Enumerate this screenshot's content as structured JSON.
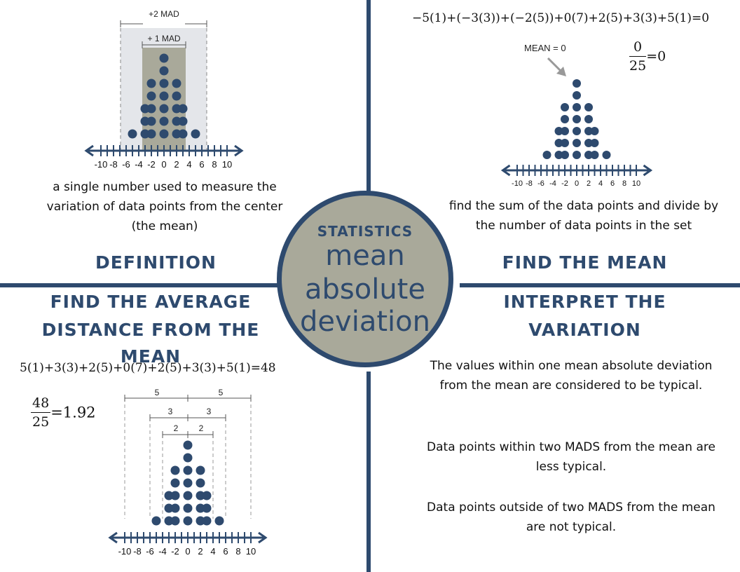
{
  "colors": {
    "navy": "#2e4a6e",
    "gray": "#a9a99a",
    "lightgray": "#e4e6ea",
    "dot": "#2e4a6e"
  },
  "center": {
    "small": "STATISTICS",
    "line1": "mean",
    "line2": "absolute",
    "line3": "deviation"
  },
  "definition": {
    "heading": "DEFINITION",
    "text": "a single number used to measure the variation of data points from the center (the mean)",
    "mad1_label": "+ 1 MAD",
    "mad2_label": "+2 MAD"
  },
  "find_mean": {
    "heading": "FIND THE MEAN",
    "equation": "−5(1)+(−3(3))+(−2(5))+0(7)+2(5)+3(3)+5(1)=0",
    "frac_num": "0",
    "frac_den": "25",
    "frac_result": "=0",
    "mean_label": "MEAN = 0",
    "text": "find the sum of the data points and divide by the number of data points in the set"
  },
  "average_distance": {
    "heading_line1": "FIND THE AVERAGE",
    "heading_line2": "DISTANCE FROM THE MEAN",
    "equation": "5(1)+3(3)+2(5)+0(7)+2(5)+3(3)+5(1)=48",
    "frac_num": "48",
    "frac_den": "25",
    "frac_result": "=1.92",
    "bracket_labels": [
      "5",
      "5",
      "3",
      "3",
      "2",
      "2"
    ]
  },
  "interpret": {
    "heading_line1": "INTERPRET THE",
    "heading_line2": "VARIATION",
    "para1": "The values within one mean absolute deviation from the mean are considered to be typical.",
    "para2": "Data points within two MADS from the mean are less typical.",
    "para3": "Data points outside of two MADS from the mean are not typical."
  },
  "axis_ticks": [
    "-10",
    "-8",
    "-6",
    "-4",
    "-2",
    "0",
    "2",
    "4",
    "6",
    "8",
    "10"
  ],
  "dot_plot": {
    "values": [
      -5,
      -3,
      -2,
      0,
      2,
      3,
      5
    ],
    "counts": [
      1,
      3,
      5,
      7,
      5,
      3,
      1
    ]
  }
}
